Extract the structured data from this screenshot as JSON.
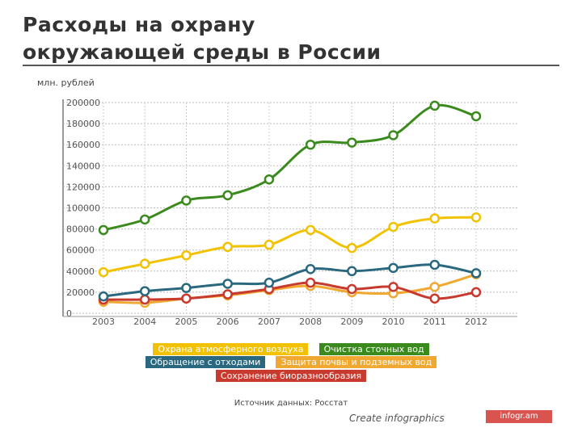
{
  "title_line1": "Расходы на охрану",
  "title_line2": "окружающей среды в России",
  "source": "Источник данных: Росстат",
  "brand_text": "Create infographics",
  "brand_badge": "infogr.am",
  "chart_data": {
    "type": "line",
    "ylabel": "млн. рублей",
    "x": [
      "2003",
      "2004",
      "2005",
      "2006",
      "2007",
      "2008",
      "2009",
      "2010",
      "2011",
      "2012"
    ],
    "ylim": [
      0,
      200000
    ],
    "yticks": [
      "0",
      "20000",
      "40000",
      "60000",
      "80000",
      "100000",
      "120000",
      "140000",
      "160000",
      "180000",
      "200000"
    ],
    "grid": true,
    "legend_position": "bottom",
    "series": [
      {
        "name": "Охрана атмосферного воздуха",
        "color": "#f2c200",
        "values": [
          39000,
          47000,
          55000,
          63000,
          65000,
          79000,
          62000,
          82000,
          90000,
          91000
        ]
      },
      {
        "name": "Очистка сточных вод",
        "color": "#3a8a1e",
        "values": [
          79000,
          89000,
          107000,
          112000,
          127000,
          160000,
          162000,
          169000,
          197000,
          187000
        ]
      },
      {
        "name": "Обращение с отходами",
        "color": "#2a6880",
        "values": [
          16000,
          21000,
          24000,
          28000,
          29000,
          42000,
          40000,
          43000,
          46000,
          38000
        ]
      },
      {
        "name": "Защита почвы и подземных вод",
        "color": "#f0a830",
        "values": [
          11000,
          10000,
          14000,
          17000,
          22000,
          26000,
          20000,
          19000,
          25000,
          37000
        ]
      },
      {
        "name": "Сохранение биоразнообразия",
        "color": "#c83a2e",
        "values": [
          13000,
          13000,
          14000,
          18000,
          23000,
          29000,
          23000,
          25000,
          14000,
          20000
        ]
      }
    ]
  }
}
